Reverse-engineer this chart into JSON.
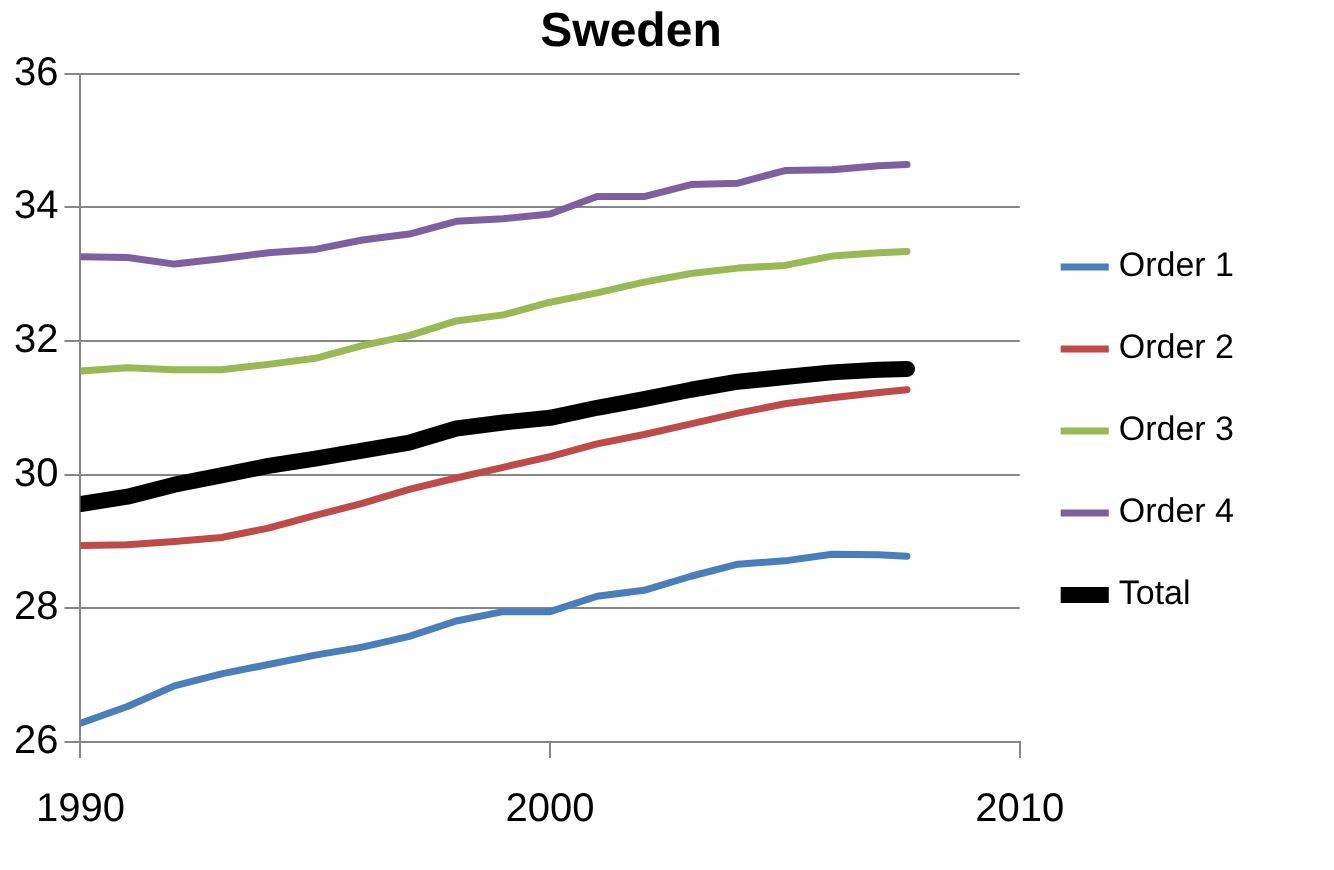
{
  "chart_data": {
    "type": "line",
    "title": "Sweden",
    "x": [
      1990,
      1991,
      1992,
      1993,
      1994,
      1995,
      1996,
      1997,
      1998,
      1999,
      2000,
      2001,
      2002,
      2003,
      2004,
      2005,
      2006,
      2007,
      2007.6
    ],
    "series": [
      {
        "name": "Order 1",
        "color": "#4a7ebb",
        "values": [
          26.28,
          26.53,
          26.84,
          27.02,
          27.16,
          27.3,
          27.42,
          27.58,
          27.81,
          27.95,
          27.95,
          28.18,
          28.27,
          28.48,
          28.66,
          28.71,
          28.81,
          28.8,
          28.78
        ]
      },
      {
        "name": "Order 2",
        "color": "#be4b48",
        "values": [
          28.94,
          28.95,
          29.0,
          29.06,
          29.2,
          29.39,
          29.57,
          29.78,
          29.95,
          30.11,
          30.27,
          30.46,
          30.6,
          30.76,
          30.92,
          31.06,
          31.15,
          31.23,
          31.27
        ]
      },
      {
        "name": "Order 3",
        "color": "#98b954",
        "values": [
          31.55,
          31.6,
          31.57,
          31.57,
          31.65,
          31.74,
          31.93,
          32.08,
          32.3,
          32.39,
          32.58,
          32.72,
          32.88,
          33.01,
          33.09,
          33.13,
          33.27,
          33.32,
          33.34
        ]
      },
      {
        "name": "Order 4",
        "color": "#7d60a0",
        "values": [
          33.26,
          33.25,
          33.15,
          33.23,
          33.32,
          33.37,
          33.51,
          33.6,
          33.79,
          33.83,
          33.9,
          34.16,
          34.16,
          34.34,
          34.36,
          34.55,
          34.56,
          34.62,
          34.64
        ]
      },
      {
        "name": "Total",
        "color": "#000000",
        "values": [
          29.56,
          29.67,
          29.85,
          29.99,
          30.13,
          30.24,
          30.36,
          30.48,
          30.69,
          30.78,
          30.85,
          31.0,
          31.13,
          31.27,
          31.39,
          31.46,
          31.53,
          31.57,
          31.58
        ]
      }
    ],
    "xlim": [
      1990,
      2010
    ],
    "xticks": [
      1990,
      2000,
      2010
    ],
    "ylim": [
      26,
      36
    ],
    "yticks": [
      26,
      28,
      30,
      32,
      34,
      36
    ],
    "grid": "y",
    "legend": "right",
    "marker": "none",
    "line_style": "solid"
  }
}
